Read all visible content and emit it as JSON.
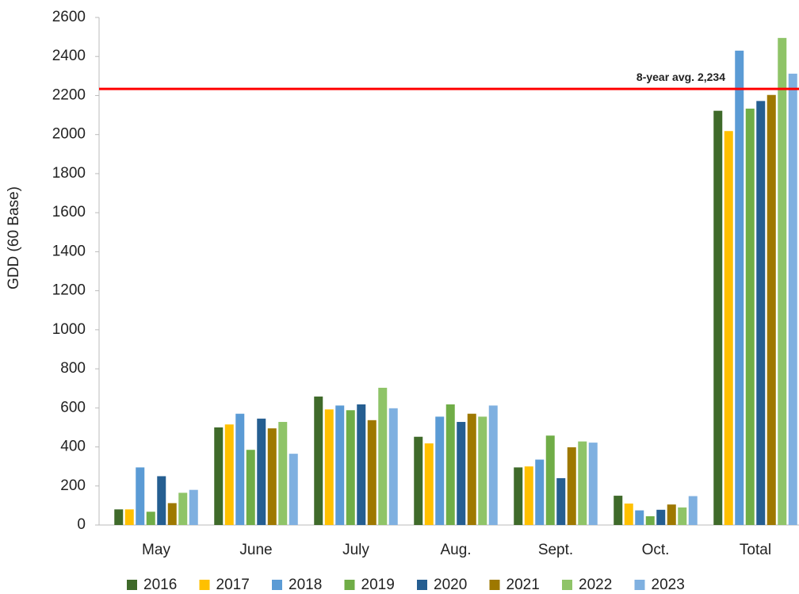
{
  "chart_data": {
    "type": "bar",
    "y_label": "GDD (60 Base)",
    "categories": [
      "May",
      "June",
      "July",
      "Aug.",
      "Sept.",
      "Oct.",
      "Total"
    ],
    "series": [
      {
        "name": "2016",
        "color": "#3f6a2a",
        "values": [
          80,
          500,
          658,
          452,
          295,
          150,
          2122
        ]
      },
      {
        "name": "2017",
        "color": "#ffc000",
        "values": [
          80,
          515,
          592,
          418,
          300,
          110,
          2018
        ]
      },
      {
        "name": "2018",
        "color": "#5b9bd5",
        "values": [
          295,
          570,
          612,
          555,
          335,
          75,
          2430
        ]
      },
      {
        "name": "2019",
        "color": "#70ad47",
        "values": [
          68,
          385,
          588,
          618,
          458,
          45,
          2133
        ]
      },
      {
        "name": "2020",
        "color": "#255e91",
        "values": [
          250,
          545,
          618,
          528,
          240,
          78,
          2172
        ]
      },
      {
        "name": "2021",
        "color": "#9e7800",
        "values": [
          112,
          495,
          537,
          570,
          398,
          105,
          2203
        ]
      },
      {
        "name": "2022",
        "color": "#8fc468",
        "values": [
          165,
          528,
          703,
          555,
          428,
          90,
          2495
        ]
      },
      {
        "name": "2023",
        "color": "#7fb0e0",
        "values": [
          180,
          365,
          598,
          612,
          422,
          148,
          2312
        ]
      }
    ],
    "reference_line": {
      "value": 2234,
      "label": "8-year avg. 2,234",
      "color": "#ff0000"
    },
    "ylim": [
      0,
      2600
    ],
    "yticks": [
      0,
      200,
      400,
      600,
      800,
      1000,
      1200,
      1400,
      1600,
      1800,
      2000,
      2200,
      2400,
      2600
    ],
    "grid": false,
    "legend": "bottom"
  }
}
